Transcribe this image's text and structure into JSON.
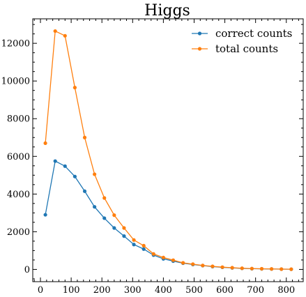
{
  "chart_data": {
    "type": "line",
    "title": "Higgs",
    "xlabel": "",
    "ylabel": "",
    "xlim": [
      -25,
      855
    ],
    "ylim": [
      -650,
      13300
    ],
    "x_ticks": [
      0,
      100,
      200,
      300,
      400,
      500,
      600,
      700,
      800
    ],
    "y_ticks": [
      0,
      2000,
      4000,
      6000,
      8000,
      10000,
      12000
    ],
    "x_tick_labels": [
      "0",
      "100",
      "200",
      "300",
      "400",
      "500",
      "600",
      "700",
      "800"
    ],
    "y_tick_labels": [
      "0",
      "2000",
      "4000",
      "6000",
      "8000",
      "10000",
      "12000"
    ],
    "legend_position": "top-right",
    "grid": false,
    "x": [
      16,
      48,
      80,
      112,
      144,
      176,
      208,
      240,
      272,
      304,
      336,
      368,
      400,
      432,
      464,
      496,
      528,
      560,
      592,
      624,
      656,
      688,
      720,
      752,
      784,
      816
    ],
    "series": [
      {
        "name": "correct counts",
        "color": "#1f77b4",
        "values": [
          2900,
          5750,
          5480,
          4930,
          4150,
          3320,
          2720,
          2200,
          1770,
          1320,
          1080,
          760,
          560,
          440,
          330,
          260,
          200,
          150,
          110,
          80,
          55,
          40,
          30,
          22,
          15,
          10
        ]
      },
      {
        "name": "total counts",
        "color": "#ff7f0e",
        "values": [
          6700,
          12650,
          12400,
          9650,
          7000,
          5050,
          3790,
          2880,
          2200,
          1560,
          1260,
          820,
          630,
          490,
          350,
          280,
          210,
          165,
          120,
          90,
          62,
          45,
          34,
          25,
          17,
          12
        ]
      }
    ]
  }
}
